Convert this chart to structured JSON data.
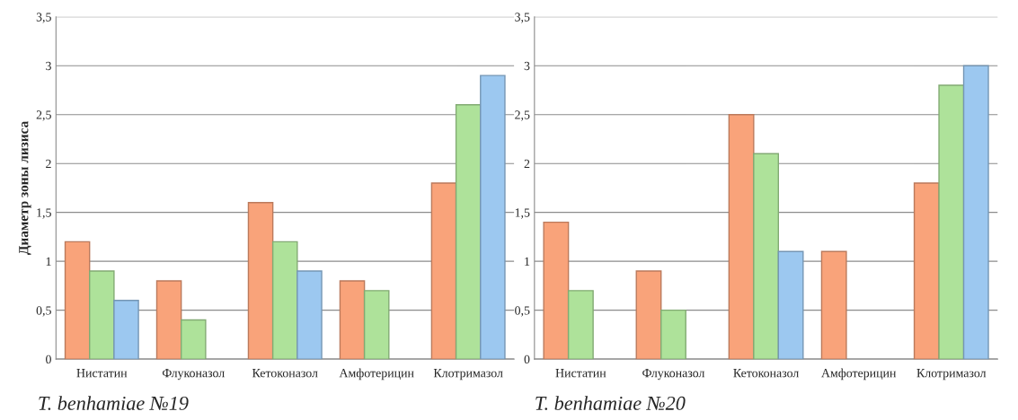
{
  "chart_data": [
    {
      "type": "bar",
      "title": "T. benhamiae №19",
      "ylabel": "Диаметр зоны лизиса",
      "categories": [
        "Нистатин",
        "Флуконазол",
        "Кетоконазол",
        "Амфотерицин",
        "Клотримазол"
      ],
      "series": [
        {
          "color": "#f9a37a",
          "values": [
            1.2,
            0.8,
            1.6,
            0.8,
            1.8
          ]
        },
        {
          "color": "#aee29a",
          "values": [
            0.9,
            0.4,
            1.2,
            0.7,
            2.6
          ]
        },
        {
          "color": "#9cc8f0",
          "values": [
            0.6,
            null,
            0.9,
            null,
            2.9
          ]
        }
      ],
      "ylim": [
        0,
        3.5
      ],
      "yticks": [
        0,
        {
          "value": 0.5,
          "label": "0,5"
        },
        1,
        {
          "value": 1.5,
          "label": "1,5"
        },
        2,
        {
          "value": 2.5,
          "label": "2,5"
        },
        3,
        {
          "value": 3.5,
          "label": "3,5"
        }
      ],
      "grid": "y",
      "legend": false
    },
    {
      "type": "bar",
      "title": "T. benhamiae №20",
      "categories": [
        "Нистатин",
        "Флуконазол",
        "Кетоконазол",
        "Амфотерицин",
        "Клотримазол"
      ],
      "series": [
        {
          "color": "#f9a37a",
          "values": [
            1.4,
            0.9,
            2.5,
            1.1,
            1.8
          ]
        },
        {
          "color": "#aee29a",
          "values": [
            0.7,
            0.5,
            2.1,
            null,
            2.8
          ]
        },
        {
          "color": "#9cc8f0",
          "values": [
            null,
            null,
            1.1,
            null,
            3.0
          ]
        }
      ],
      "ylim": [
        0,
        3.5
      ],
      "yticks": [
        0,
        {
          "value": 0.5,
          "label": "0,5"
        },
        1,
        {
          "value": 1.5,
          "label": "1,5"
        },
        2,
        {
          "value": 2.5,
          "label": "2,5"
        },
        3,
        {
          "value": 3.5,
          "label": "3,5"
        }
      ],
      "grid": "y",
      "legend": false
    }
  ]
}
